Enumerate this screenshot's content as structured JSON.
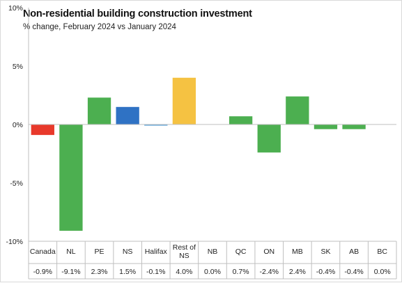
{
  "chart_data": {
    "type": "bar",
    "title": "Non-residential building construction investment",
    "subtitle": "% change, February 2024 vs January 2024",
    "y_ticks": [
      "10%",
      "5%",
      "0%",
      "-5%",
      "-10%"
    ],
    "y_tick_values": [
      10,
      5,
      0,
      -5,
      -10
    ],
    "ylim": [
      -10,
      10
    ],
    "grid": false,
    "categories": [
      "Canada",
      "NL",
      "PE",
      "NS",
      "Halifax",
      "Rest of NS",
      "NB",
      "QC",
      "ON",
      "MB",
      "SK",
      "AB",
      "BC"
    ],
    "values": [
      -0.9,
      -9.1,
      2.3,
      1.5,
      -0.1,
      4.0,
      0.0,
      0.7,
      -2.4,
      2.4,
      -0.4,
      -0.4,
      0.0
    ],
    "value_labels": [
      "-0.9%",
      "-9.1%",
      "2.3%",
      "1.5%",
      "-0.1%",
      "4.0%",
      "0.0%",
      "0.7%",
      "-2.4%",
      "2.4%",
      "-0.4%",
      "-0.4%",
      "0.0%"
    ],
    "colors": [
      "#e8392b",
      "#4caf50",
      "#4caf50",
      "#2f72c4",
      "#5ba3d9",
      "#f5c242",
      "#4caf50",
      "#4caf50",
      "#4caf50",
      "#4caf50",
      "#4caf50",
      "#4caf50",
      "#4caf50"
    ]
  }
}
